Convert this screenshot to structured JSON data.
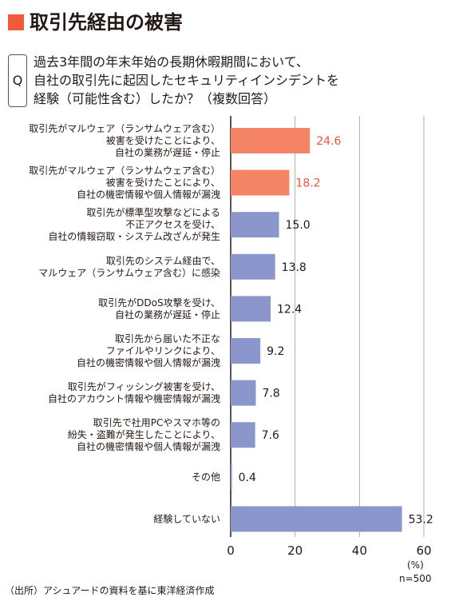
{
  "title": "取引先経由の被害",
  "question": {
    "mark": "Q",
    "lines": [
      "過去3年間の年末年始の長期休暇期間において、",
      "自社の取引先に起因したセキュリティインシデントを",
      "経験（可能性含む）したか？（複数回答）"
    ]
  },
  "chart_data": {
    "type": "bar",
    "orientation": "horizontal",
    "categories": [
      [
        "取引先がマルウェア（ランサムウェア含む）",
        "被害を受けたことにより、",
        "自社の業務が遅延・停止"
      ],
      [
        "取引先がマルウェア（ランサムウェア含む）",
        "被害を受けたことにより、",
        "自社の機密情報や個人情報が漏洩"
      ],
      [
        "取引先が標準型攻撃などによる",
        "不正アクセスを受け、",
        "自社の情報窃取・システム改ざんが発生"
      ],
      [
        "取引先のシステム経由で、",
        "マルウェア（ランサムウェア含む）に感染"
      ],
      [
        "取引先がDDoS攻撃を受け、",
        "自社の業務が遅延・停止"
      ],
      [
        "取引先から届いた不正な",
        "ファイルやリンクにより、",
        "自社の機密情報や個人情報が漏洩"
      ],
      [
        "取引先がフィッシング被害を受け、",
        "自社のアカウント情報や機密情報が漏洩"
      ],
      [
        "取引先で社用PCやスマホ等の",
        "紛失・盗難が発生したことにより、",
        "自社の機密情報や個人情報が漏洩"
      ],
      [
        "その他"
      ],
      [
        "経験していない"
      ]
    ],
    "values": [
      24.6,
      18.2,
      15.0,
      13.8,
      12.4,
      9.2,
      7.8,
      7.6,
      0.4,
      53.2
    ],
    "value_labels": [
      "24.6",
      "18.2",
      "15.0",
      "13.8",
      "12.4",
      "9.2",
      "7.8",
      "7.6",
      "0.4",
      "53.2"
    ],
    "highlight": [
      true,
      true,
      false,
      false,
      false,
      false,
      false,
      false,
      false,
      false
    ],
    "xlim": [
      0,
      60
    ],
    "xticks": [
      0,
      20,
      40,
      60
    ],
    "grid": true,
    "colors": {
      "highlight": "#f48465",
      "highlight_text": "#e8563a",
      "bar": "#8b97cc",
      "text": "#231815",
      "grid": "#999999",
      "title_mark": "#ee5a3a"
    }
  },
  "unit": "(%)",
  "sample": "n=500",
  "source": "（出所）アシュアードの資料を基に東洋経済作成"
}
